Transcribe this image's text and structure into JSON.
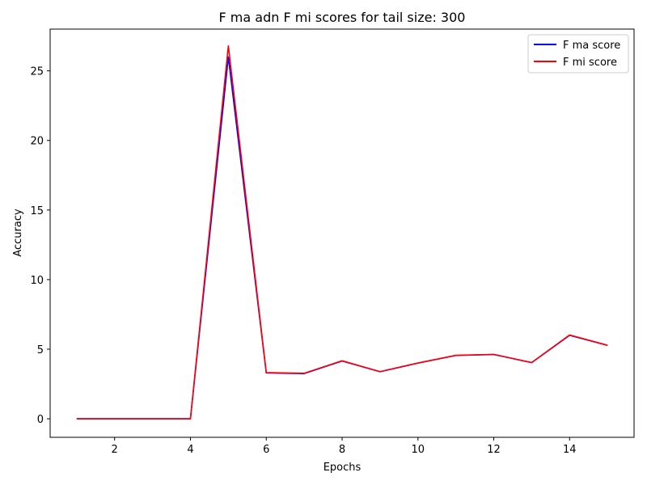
{
  "chart_data": {
    "type": "line",
    "title": "F ma adn F mi scores for tail size: 300",
    "xlabel": "Epochs",
    "ylabel": "Accuracy",
    "x": [
      1,
      2,
      3,
      4,
      5,
      6,
      7,
      8,
      9,
      10,
      11,
      12,
      13,
      14,
      15
    ],
    "xticks": [
      2,
      4,
      6,
      8,
      10,
      12,
      14
    ],
    "yticks": [
      0,
      5,
      10,
      15,
      20,
      25
    ],
    "xlim": [
      0.3,
      15.7
    ],
    "ylim": [
      -1.33,
      28.0
    ],
    "grid": false,
    "legend_position": "top-right",
    "series": [
      {
        "name": "F ma score",
        "color": "#0000ff",
        "values": [
          0,
          0,
          0,
          0,
          26.0,
          3.3,
          3.25,
          4.15,
          3.38,
          4.0,
          4.55,
          4.62,
          4.04,
          6.0,
          5.28
        ]
      },
      {
        "name": "F mi score",
        "color": "#ff0000",
        "values": [
          0,
          0,
          0,
          0,
          26.8,
          3.32,
          3.27,
          4.17,
          3.39,
          4.01,
          4.56,
          4.63,
          4.04,
          6.02,
          5.28
        ]
      }
    ]
  }
}
